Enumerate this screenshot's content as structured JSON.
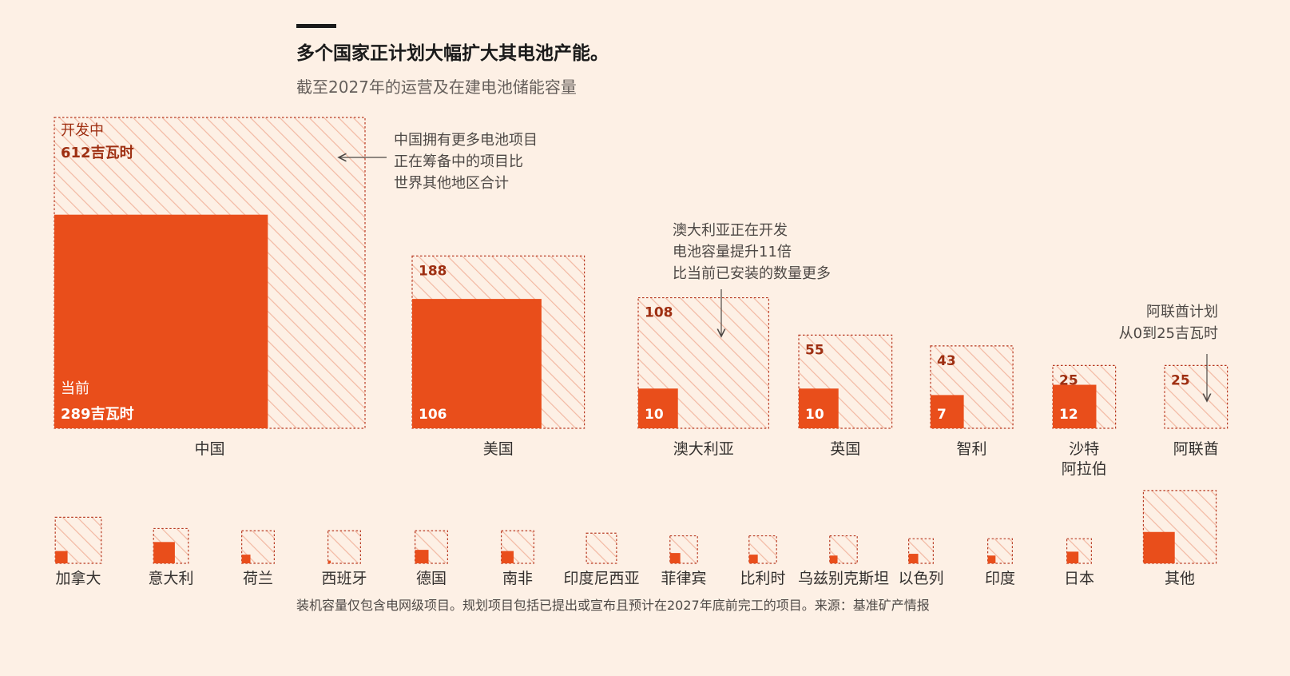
{
  "title": "多个国家正计划大幅扩大其电池产能。",
  "subtitle": "截至2027年的运营及在建电池储能容量",
  "footnote": "装机容量仅包含电网级项目。规划项目包括已提出或宣布且预计在2027年底前完工的项目。来源：基准矿产情报",
  "colors": {
    "current": "#e94e1b",
    "pipeline_hatch": "#f2b8a2",
    "pipeline_border": "#b83a22",
    "background": "#fdf0e5",
    "value_label": "#9e2f12"
  },
  "chart_data": {
    "type": "nested-square",
    "unit": "吉瓦时",
    "series": [
      {
        "name": "开发中",
        "label": "开发中"
      },
      {
        "name": "当前",
        "label": "当前"
      }
    ],
    "main": [
      {
        "country": "中国",
        "pipeline": 612,
        "current": 289,
        "pipeline_label": "612吉瓦时",
        "current_label": "289吉瓦时"
      },
      {
        "country": "美国",
        "pipeline": 188,
        "current": 106,
        "pipeline_label": "188",
        "current_label": "106"
      },
      {
        "country": "澳大利亚",
        "pipeline": 108,
        "current": 10,
        "pipeline_label": "108",
        "current_label": "10"
      },
      {
        "country": "英国",
        "pipeline": 55,
        "current": 10,
        "pipeline_label": "55",
        "current_label": "10"
      },
      {
        "country": "智利",
        "pipeline": 43,
        "current": 7,
        "pipeline_label": "43",
        "current_label": "7"
      },
      {
        "country": "沙特\n阿拉伯",
        "pipeline": 25,
        "current": 12,
        "pipeline_label": "25",
        "current_label": "12"
      },
      {
        "country": "阿联酋",
        "pipeline": 25,
        "current": 0,
        "pipeline_label": "25",
        "current_label": ""
      }
    ],
    "small": [
      {
        "country": "加拿大",
        "pipeline": 14,
        "current": 1
      },
      {
        "country": "意大利",
        "pipeline": 8,
        "current": 3
      },
      {
        "country": "荷兰",
        "pipeline": 7,
        "current": 0.5
      },
      {
        "country": "西班牙",
        "pipeline": 7,
        "current": 0.05
      },
      {
        "country": "德国",
        "pipeline": 7,
        "current": 1.2
      },
      {
        "country": "南非",
        "pipeline": 7,
        "current": 1
      },
      {
        "country": "印度尼西亚",
        "pipeline": 6,
        "current": 0
      },
      {
        "country": "菲律宾",
        "pipeline": 5,
        "current": 0.7
      },
      {
        "country": "比利时",
        "pipeline": 5,
        "current": 0.5
      },
      {
        "country": "乌兹别克斯坦",
        "pipeline": 5,
        "current": 0.4
      },
      {
        "country": "以色列",
        "pipeline": 4,
        "current": 0.6
      },
      {
        "country": "印度",
        "pipeline": 4,
        "current": 0.4
      },
      {
        "country": "日本",
        "pipeline": 4,
        "current": 0.9
      },
      {
        "country": "其他",
        "pipeline": 35,
        "current": 6.5
      }
    ],
    "annotations": [
      {
        "id": "china",
        "text": [
          "中国拥有更多电池项目",
          "正在筹备中的项目比",
          "世界其他地区合计"
        ]
      },
      {
        "id": "australia",
        "text": [
          "澳大利亚正在开发",
          "电池容量提升11倍",
          "比当前已安装的数量更多"
        ]
      },
      {
        "id": "uae",
        "text": [
          "阿联酋计划",
          "从0到25吉瓦时"
        ]
      }
    ]
  }
}
